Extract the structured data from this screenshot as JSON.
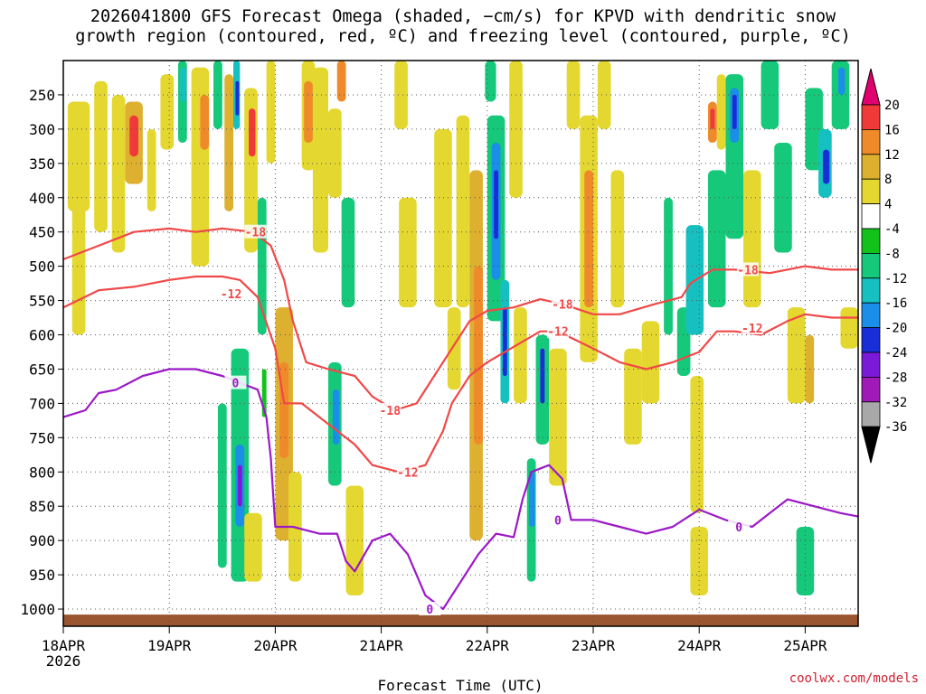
{
  "chart_data": {
    "type": "heatmap",
    "title_line1": "2026041800 GFS Forecast Omega (shaded, −cm/s) for KPVD with dendritic snow",
    "title_line2": "growth region (contoured, red, ºC) and freezing level (contoured, purple, ºC)",
    "xlabel": "Forecast Time (UTC)",
    "ylabel": "",
    "x_range_hours": [
      0,
      180
    ],
    "y_range_hpa": [
      200,
      1025
    ],
    "x_ticks": [
      {
        "label": "18APR",
        "hour": 0
      },
      {
        "label": "19APR",
        "hour": 24
      },
      {
        "label": "20APR",
        "hour": 48
      },
      {
        "label": "21APR",
        "hour": 72
      },
      {
        "label": "22APR",
        "hour": 96
      },
      {
        "label": "23APR",
        "hour": 120
      },
      {
        "label": "24APR",
        "hour": 144
      },
      {
        "label": "25APR",
        "hour": 168
      }
    ],
    "x_year_label": "2026",
    "y_ticks": [
      250,
      300,
      350,
      400,
      450,
      500,
      550,
      600,
      650,
      700,
      750,
      800,
      850,
      900,
      950,
      1000
    ],
    "colorbar": {
      "labels": [
        "20",
        "16",
        "12",
        "8",
        "4",
        "-4",
        "-8",
        "-12",
        "-16",
        "-20",
        "-24",
        "-28",
        "-32",
        "-36"
      ],
      "colors": [
        "#e0006e",
        "#f03a3a",
        "#ef8a2a",
        "#ddb030",
        "#e4d72f",
        "#ffffff",
        "#12c21a",
        "#15c87a",
        "#17c0c0",
        "#1a8ee8",
        "#1a2ed8",
        "#7a1ad8",
        "#a01ab8",
        "#a8a8a8",
        "#000000"
      ]
    },
    "omega_cells": [
      {
        "t0": 1,
        "t1": 6,
        "p0": 260,
        "p1": 420,
        "v": 6
      },
      {
        "t0": 2,
        "t1": 5,
        "p0": 400,
        "p1": 600,
        "v": 4
      },
      {
        "t0": 7,
        "t1": 10,
        "p0": 230,
        "p1": 450,
        "v": 5
      },
      {
        "t0": 14,
        "t1": 18,
        "p0": 260,
        "p1": 380,
        "v": 10
      },
      {
        "t0": 15,
        "t1": 17,
        "p0": 280,
        "p1": 340,
        "v": 16
      },
      {
        "t0": 11,
        "t1": 14,
        "p0": 250,
        "p1": 480,
        "v": 5
      },
      {
        "t0": 19,
        "t1": 21,
        "p0": 300,
        "p1": 420,
        "v": 5
      },
      {
        "t0": 22,
        "t1": 25,
        "p0": 220,
        "p1": 330,
        "v": 6
      },
      {
        "t0": 26,
        "t1": 28,
        "p0": 200,
        "p1": 320,
        "v": -8
      },
      {
        "t0": 26.5,
        "t1": 27.8,
        "p0": 210,
        "p1": 260,
        "v": -14
      },
      {
        "t0": 29,
        "t1": 33,
        "p0": 210,
        "p1": 500,
        "v": 6
      },
      {
        "t0": 31,
        "t1": 33,
        "p0": 250,
        "p1": 330,
        "v": 14
      },
      {
        "t0": 34,
        "t1": 36,
        "p0": 200,
        "p1": 300,
        "v": -8
      },
      {
        "t0": 36.5,
        "t1": 38.5,
        "p0": 220,
        "p1": 420,
        "v": 8
      },
      {
        "t0": 38.5,
        "t1": 40,
        "p0": 200,
        "p1": 300,
        "v": -12
      },
      {
        "t0": 39,
        "t1": 39.8,
        "p0": 230,
        "p1": 280,
        "v": -20
      },
      {
        "t0": 41,
        "t1": 44,
        "p0": 240,
        "p1": 480,
        "v": 6
      },
      {
        "t0": 42,
        "t1": 43.5,
        "p0": 270,
        "p1": 340,
        "v": 16
      },
      {
        "t0": 44,
        "t1": 46,
        "p0": 400,
        "p1": 600,
        "v": -8
      },
      {
        "t0": 45,
        "t1": 46,
        "p0": 650,
        "p1": 720,
        "v": -6
      },
      {
        "t0": 46,
        "t1": 48,
        "p0": 200,
        "p1": 350,
        "v": 6
      },
      {
        "t0": 48,
        "t1": 52,
        "p0": 560,
        "p1": 900,
        "v": 8
      },
      {
        "t0": 49,
        "t1": 51,
        "p0": 640,
        "p1": 780,
        "v": 14
      },
      {
        "t0": 54,
        "t1": 57,
        "p0": 200,
        "p1": 360,
        "v": 6
      },
      {
        "t0": 54.5,
        "t1": 56.5,
        "p0": 230,
        "p1": 320,
        "v": 14
      },
      {
        "t0": 56.5,
        "t1": 60,
        "p0": 210,
        "p1": 480,
        "v": 7
      },
      {
        "t0": 62,
        "t1": 64,
        "p0": 200,
        "p1": 260,
        "v": 14
      },
      {
        "t0": 60,
        "t1": 63,
        "p0": 270,
        "p1": 400,
        "v": 4
      },
      {
        "t0": 38,
        "t1": 42,
        "p0": 620,
        "p1": 960,
        "v": -8
      },
      {
        "t0": 39,
        "t1": 41,
        "p0": 760,
        "p1": 880,
        "v": -18
      },
      {
        "t0": 39.5,
        "t1": 40.5,
        "p0": 790,
        "p1": 850,
        "v": -24
      },
      {
        "t0": 35,
        "t1": 37,
        "p0": 700,
        "p1": 940,
        "v": -8
      },
      {
        "t0": 41,
        "t1": 45,
        "p0": 860,
        "p1": 960,
        "v": 5
      },
      {
        "t0": 51,
        "t1": 54,
        "p0": 800,
        "p1": 960,
        "v": 6
      },
      {
        "t0": 60,
        "t1": 63,
        "p0": 640,
        "p1": 820,
        "v": -8
      },
      {
        "t0": 61,
        "t1": 62.5,
        "p0": 680,
        "p1": 760,
        "v": -16
      },
      {
        "t0": 64,
        "t1": 68,
        "p0": 820,
        "p1": 980,
        "v": 6
      },
      {
        "t0": 63,
        "t1": 66,
        "p0": 400,
        "p1": 560,
        "v": -8
      },
      {
        "t0": 75,
        "t1": 78,
        "p0": 200,
        "p1": 300,
        "v": 5
      },
      {
        "t0": 76,
        "t1": 80,
        "p0": 400,
        "p1": 560,
        "v": 5
      },
      {
        "t0": 84,
        "t1": 88,
        "p0": 300,
        "p1": 560,
        "v": 5
      },
      {
        "t0": 87,
        "t1": 90,
        "p0": 560,
        "p1": 680,
        "v": 6
      },
      {
        "t0": 89,
        "t1": 92,
        "p0": 280,
        "p1": 560,
        "v": 6
      },
      {
        "t0": 92,
        "t1": 95,
        "p0": 360,
        "p1": 900,
        "v": 8
      },
      {
        "t0": 93,
        "t1": 95,
        "p0": 500,
        "p1": 760,
        "v": 14
      },
      {
        "t0": 95.5,
        "t1": 98,
        "p0": 200,
        "p1": 260,
        "v": -8
      },
      {
        "t0": 96,
        "t1": 100,
        "p0": 280,
        "p1": 580,
        "v": -10
      },
      {
        "t0": 97,
        "t1": 99,
        "p0": 320,
        "p1": 520,
        "v": -16
      },
      {
        "t0": 97.5,
        "t1": 98.5,
        "p0": 360,
        "p1": 460,
        "v": -22
      },
      {
        "t0": 99,
        "t1": 101,
        "p0": 520,
        "p1": 700,
        "v": -12
      },
      {
        "t0": 99.5,
        "t1": 100.5,
        "p0": 560,
        "p1": 660,
        "v": -22
      },
      {
        "t0": 101,
        "t1": 104,
        "p0": 200,
        "p1": 400,
        "v": 6
      },
      {
        "t0": 102,
        "t1": 105,
        "p0": 560,
        "p1": 700,
        "v": 6
      },
      {
        "t0": 105,
        "t1": 107,
        "p0": 780,
        "p1": 960,
        "v": -10
      },
      {
        "t0": 105.5,
        "t1": 106.8,
        "p0": 800,
        "p1": 880,
        "v": -18
      },
      {
        "t0": 107,
        "t1": 110,
        "p0": 600,
        "p1": 760,
        "v": -8
      },
      {
        "t0": 108,
        "t1": 109,
        "p0": 620,
        "p1": 700,
        "v": -20
      },
      {
        "t0": 110,
        "t1": 114,
        "p0": 620,
        "p1": 820,
        "v": 6
      },
      {
        "t0": 114,
        "t1": 117,
        "p0": 200,
        "p1": 300,
        "v": 4
      },
      {
        "t0": 117,
        "t1": 121,
        "p0": 280,
        "p1": 640,
        "v": 7
      },
      {
        "t0": 118,
        "t1": 120,
        "p0": 360,
        "p1": 560,
        "v": 14
      },
      {
        "t0": 121,
        "t1": 124,
        "p0": 200,
        "p1": 300,
        "v": 5
      },
      {
        "t0": 124,
        "t1": 127,
        "p0": 360,
        "p1": 560,
        "v": 5
      },
      {
        "t0": 127,
        "t1": 131,
        "p0": 620,
        "p1": 760,
        "v": 5
      },
      {
        "t0": 131,
        "t1": 135,
        "p0": 580,
        "p1": 700,
        "v": 4
      },
      {
        "t0": 136,
        "t1": 138,
        "p0": 400,
        "p1": 600,
        "v": -8
      },
      {
        "t0": 139,
        "t1": 142,
        "p0": 560,
        "p1": 660,
        "v": -10
      },
      {
        "t0": 141,
        "t1": 145,
        "p0": 440,
        "p1": 600,
        "v": -12
      },
      {
        "t0": 142,
        "t1": 145,
        "p0": 660,
        "p1": 860,
        "v": 5
      },
      {
        "t0": 148,
        "t1": 150,
        "p0": 220,
        "p1": 330,
        "v": 6
      },
      {
        "t0": 146,
        "t1": 150,
        "p0": 360,
        "p1": 560,
        "v": -8
      },
      {
        "t0": 150,
        "t1": 154,
        "p0": 220,
        "p1": 460,
        "v": -10
      },
      {
        "t0": 151,
        "t1": 153,
        "p0": 240,
        "p1": 320,
        "v": -16
      },
      {
        "t0": 151.5,
        "t1": 152.5,
        "p0": 250,
        "p1": 300,
        "v": -22
      },
      {
        "t0": 146,
        "t1": 148,
        "p0": 260,
        "p1": 320,
        "v": 14
      },
      {
        "t0": 146.5,
        "t1": 147.5,
        "p0": 270,
        "p1": 300,
        "v": 16
      },
      {
        "t0": 154,
        "t1": 158,
        "p0": 360,
        "p1": 560,
        "v": 5
      },
      {
        "t0": 158,
        "t1": 162,
        "p0": 200,
        "p1": 300,
        "v": -8
      },
      {
        "t0": 161,
        "t1": 165,
        "p0": 320,
        "p1": 480,
        "v": -8
      },
      {
        "t0": 164,
        "t1": 168,
        "p0": 560,
        "p1": 700,
        "v": 6
      },
      {
        "t0": 168,
        "t1": 172,
        "p0": 240,
        "p1": 360,
        "v": -8
      },
      {
        "t0": 171,
        "t1": 174,
        "p0": 300,
        "p1": 400,
        "v": -12
      },
      {
        "t0": 172,
        "t1": 173.5,
        "p0": 330,
        "p1": 380,
        "v": -22
      },
      {
        "t0": 174,
        "t1": 178,
        "p0": 200,
        "p1": 300,
        "v": -10
      },
      {
        "t0": 175.5,
        "t1": 177,
        "p0": 210,
        "p1": 250,
        "v": -16
      },
      {
        "t0": 176,
        "t1": 180,
        "p0": 560,
        "p1": 620,
        "v": 4
      },
      {
        "t0": 166,
        "t1": 170,
        "p0": 880,
        "p1": 980,
        "v": -8
      },
      {
        "t0": 168,
        "t1": 170,
        "p0": 600,
        "p1": 700,
        "v": 10
      },
      {
        "t0": 142,
        "t1": 146,
        "p0": 880,
        "p1": 980,
        "v": 5
      }
    ],
    "contours": [
      {
        "label": "-18",
        "color": "#f04848",
        "label_at": [
          43.5,
          450
        ],
        "label_at2": [
          74,
          710
        ],
        "label_at3": [
          113,
          555
        ],
        "label_at4": [
          155,
          505
        ],
        "points": [
          [
            0,
            490
          ],
          [
            8,
            470
          ],
          [
            16,
            450
          ],
          [
            24,
            445
          ],
          [
            30,
            450
          ],
          [
            36,
            445
          ],
          [
            43,
            450
          ],
          [
            47,
            470
          ],
          [
            50,
            520
          ],
          [
            52,
            580
          ],
          [
            55,
            640
          ],
          [
            60,
            650
          ],
          [
            66,
            660
          ],
          [
            70,
            690
          ],
          [
            75,
            710
          ],
          [
            80,
            700
          ],
          [
            84,
            660
          ],
          [
            88,
            620
          ],
          [
            92,
            580
          ],
          [
            96,
            565
          ],
          [
            102,
            560
          ],
          [
            108,
            548
          ],
          [
            113,
            555
          ],
          [
            120,
            570
          ],
          [
            126,
            570
          ],
          [
            134,
            555
          ],
          [
            140,
            545
          ],
          [
            142,
            525
          ],
          [
            147,
            505
          ],
          [
            152,
            505
          ],
          [
            160,
            510
          ],
          [
            168,
            500
          ],
          [
            174,
            505
          ],
          [
            180,
            505
          ]
        ]
      },
      {
        "label": "-12",
        "color": "#f04848",
        "label_at": [
          38,
          540
        ],
        "label_at2": [
          78,
          800
        ],
        "label_at3": [
          112,
          595
        ],
        "label_at4": [
          156,
          590
        ],
        "points": [
          [
            0,
            560
          ],
          [
            8,
            535
          ],
          [
            16,
            530
          ],
          [
            24,
            520
          ],
          [
            30,
            515
          ],
          [
            36,
            515
          ],
          [
            40,
            520
          ],
          [
            44,
            545
          ],
          [
            48,
            620
          ],
          [
            50,
            700
          ],
          [
            54,
            700
          ],
          [
            60,
            730
          ],
          [
            66,
            760
          ],
          [
            70,
            790
          ],
          [
            76,
            800
          ],
          [
            82,
            790
          ],
          [
            86,
            740
          ],
          [
            88,
            700
          ],
          [
            92,
            660
          ],
          [
            96,
            640
          ],
          [
            100,
            625
          ],
          [
            104,
            610
          ],
          [
            108,
            595
          ],
          [
            112,
            595
          ],
          [
            120,
            620
          ],
          [
            126,
            640
          ],
          [
            132,
            650
          ],
          [
            138,
            640
          ],
          [
            144,
            625
          ],
          [
            148,
            595
          ],
          [
            152,
            595
          ],
          [
            158,
            600
          ],
          [
            164,
            580
          ],
          [
            168,
            570
          ],
          [
            174,
            575
          ],
          [
            180,
            575
          ]
        ]
      },
      {
        "label": "0",
        "color": "#9c18c8",
        "label_at": [
          39,
          670
        ],
        "label_at2": [
          83,
          1000
        ],
        "label_at3": [
          112,
          870
        ],
        "label_at4": [
          153,
          880
        ],
        "points": [
          [
            0,
            720
          ],
          [
            5,
            710
          ],
          [
            8,
            685
          ],
          [
            12,
            680
          ],
          [
            18,
            660
          ],
          [
            24,
            650
          ],
          [
            30,
            650
          ],
          [
            36,
            660
          ],
          [
            40,
            670
          ],
          [
            44,
            680
          ],
          [
            46,
            720
          ],
          [
            47,
            780
          ],
          [
            48,
            880
          ],
          [
            52,
            880
          ],
          [
            58,
            890
          ],
          [
            62,
            890
          ],
          [
            64,
            930
          ],
          [
            66,
            945
          ],
          [
            70,
            900
          ],
          [
            74,
            890
          ],
          [
            78,
            920
          ],
          [
            82,
            980
          ],
          [
            86,
            1000
          ],
          [
            90,
            960
          ],
          [
            94,
            920
          ],
          [
            98,
            890
          ],
          [
            102,
            895
          ],
          [
            104,
            840
          ],
          [
            106,
            800
          ],
          [
            110,
            790
          ],
          [
            113,
            810
          ],
          [
            115,
            870
          ],
          [
            120,
            870
          ],
          [
            126,
            880
          ],
          [
            132,
            890
          ],
          [
            138,
            880
          ],
          [
            144,
            855
          ],
          [
            150,
            870
          ],
          [
            156,
            880
          ],
          [
            160,
            860
          ],
          [
            164,
            840
          ],
          [
            170,
            850
          ],
          [
            176,
            860
          ],
          [
            180,
            865
          ]
        ]
      }
    ],
    "credit": "coolwx.com/models"
  }
}
